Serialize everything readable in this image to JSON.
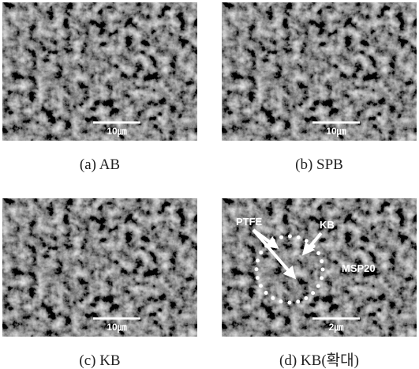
{
  "panels": [
    {
      "caption": "(a) AB",
      "scale_label": "10㎛"
    },
    {
      "caption": "(b) SPB",
      "scale_label": "10㎛"
    },
    {
      "caption": "(c) KB",
      "scale_label": "10㎛"
    },
    {
      "caption": "(d) KB(확대)",
      "scale_label": "2㎛",
      "annotations": [
        "PTFE",
        "KB",
        "MSP20"
      ]
    }
  ]
}
